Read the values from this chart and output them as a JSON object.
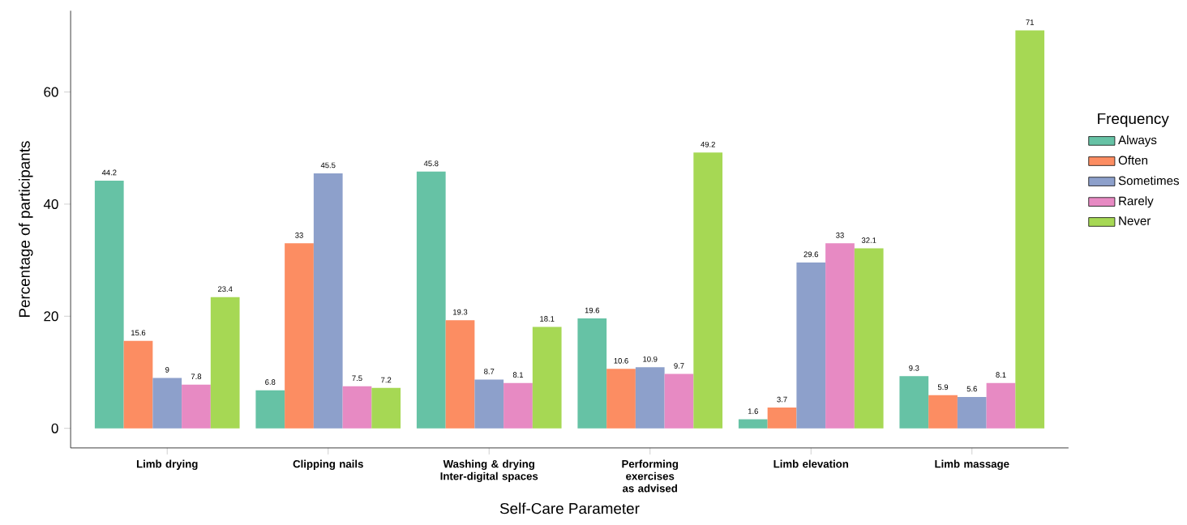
{
  "chart_data": {
    "type": "bar",
    "xlabel": "Self-Care Parameter",
    "ylabel": "Percentage of participants",
    "legend_title": "Frequency",
    "legend": "right",
    "categories": [
      "Limb drying",
      "Clipping nails",
      "Washing & drying Inter-digital spaces",
      "Performing exercises as advised",
      "Limb elevation",
      "Limb massage"
    ],
    "series": [
      {
        "name": "Always",
        "color": "#66c2a5",
        "values": [
          44.2,
          6.8,
          45.8,
          19.6,
          1.6,
          9.3
        ]
      },
      {
        "name": "Often",
        "color": "#fc8d62",
        "values": [
          15.6,
          33,
          19.3,
          10.6,
          3.7,
          5.9
        ]
      },
      {
        "name": "Sometimes",
        "color": "#8da0cb",
        "values": [
          9,
          45.5,
          8.7,
          10.9,
          29.6,
          5.6
        ]
      },
      {
        "name": "Rarely",
        "color": "#e78ac3",
        "values": [
          7.8,
          7.5,
          8.1,
          9.7,
          33,
          8.1
        ]
      },
      {
        "name": "Never",
        "color": "#a6d854",
        "values": [
          23.4,
          7.2,
          18.1,
          49.2,
          32.1,
          71
        ]
      }
    ],
    "ylim": [
      -3.5,
      74.5
    ],
    "yticks": [
      0,
      20,
      40,
      60
    ],
    "data_labels": true,
    "grid": false
  }
}
